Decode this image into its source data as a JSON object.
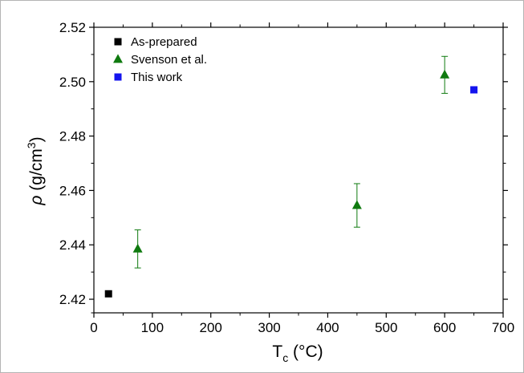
{
  "chart_data": {
    "type": "scatter",
    "xlabel": {
      "main": "T",
      "sub": "c",
      "rest": " (°C)"
    },
    "ylabel": {
      "symbol": "ρ",
      "rest": " (g/cm",
      "sup": "3",
      "close": ")"
    },
    "xlim": [
      0,
      700
    ],
    "ylim": [
      2.415,
      2.52
    ],
    "xticks": [
      0,
      100,
      200,
      300,
      400,
      500,
      600,
      700
    ],
    "yticks": [
      2.42,
      2.44,
      2.46,
      2.48,
      2.5,
      2.52
    ],
    "xtick_labels": [
      "0",
      "100",
      "200",
      "300",
      "400",
      "500",
      "600",
      "700"
    ],
    "ytick_labels": [
      "2.42",
      "2.44",
      "2.46",
      "2.48",
      "2.50",
      "2.52"
    ],
    "legend_position": "top-left",
    "grid": false,
    "series": [
      {
        "name": "As-prepared",
        "marker": "square",
        "color": "#000000",
        "points": [
          {
            "x": 25,
            "y": 2.422
          }
        ]
      },
      {
        "name": "Svenson et al.",
        "marker": "triangle",
        "color": "#0f7a0f",
        "points": [
          {
            "x": 75,
            "y": 2.4385,
            "err": 0.007
          },
          {
            "x": 450,
            "y": 2.4545,
            "err": 0.008
          },
          {
            "x": 600,
            "y": 2.5025,
            "err": 0.0068
          }
        ]
      },
      {
        "name": "This work",
        "marker": "square",
        "color": "#1414ee",
        "points": [
          {
            "x": 650,
            "y": 2.497
          }
        ]
      }
    ]
  }
}
